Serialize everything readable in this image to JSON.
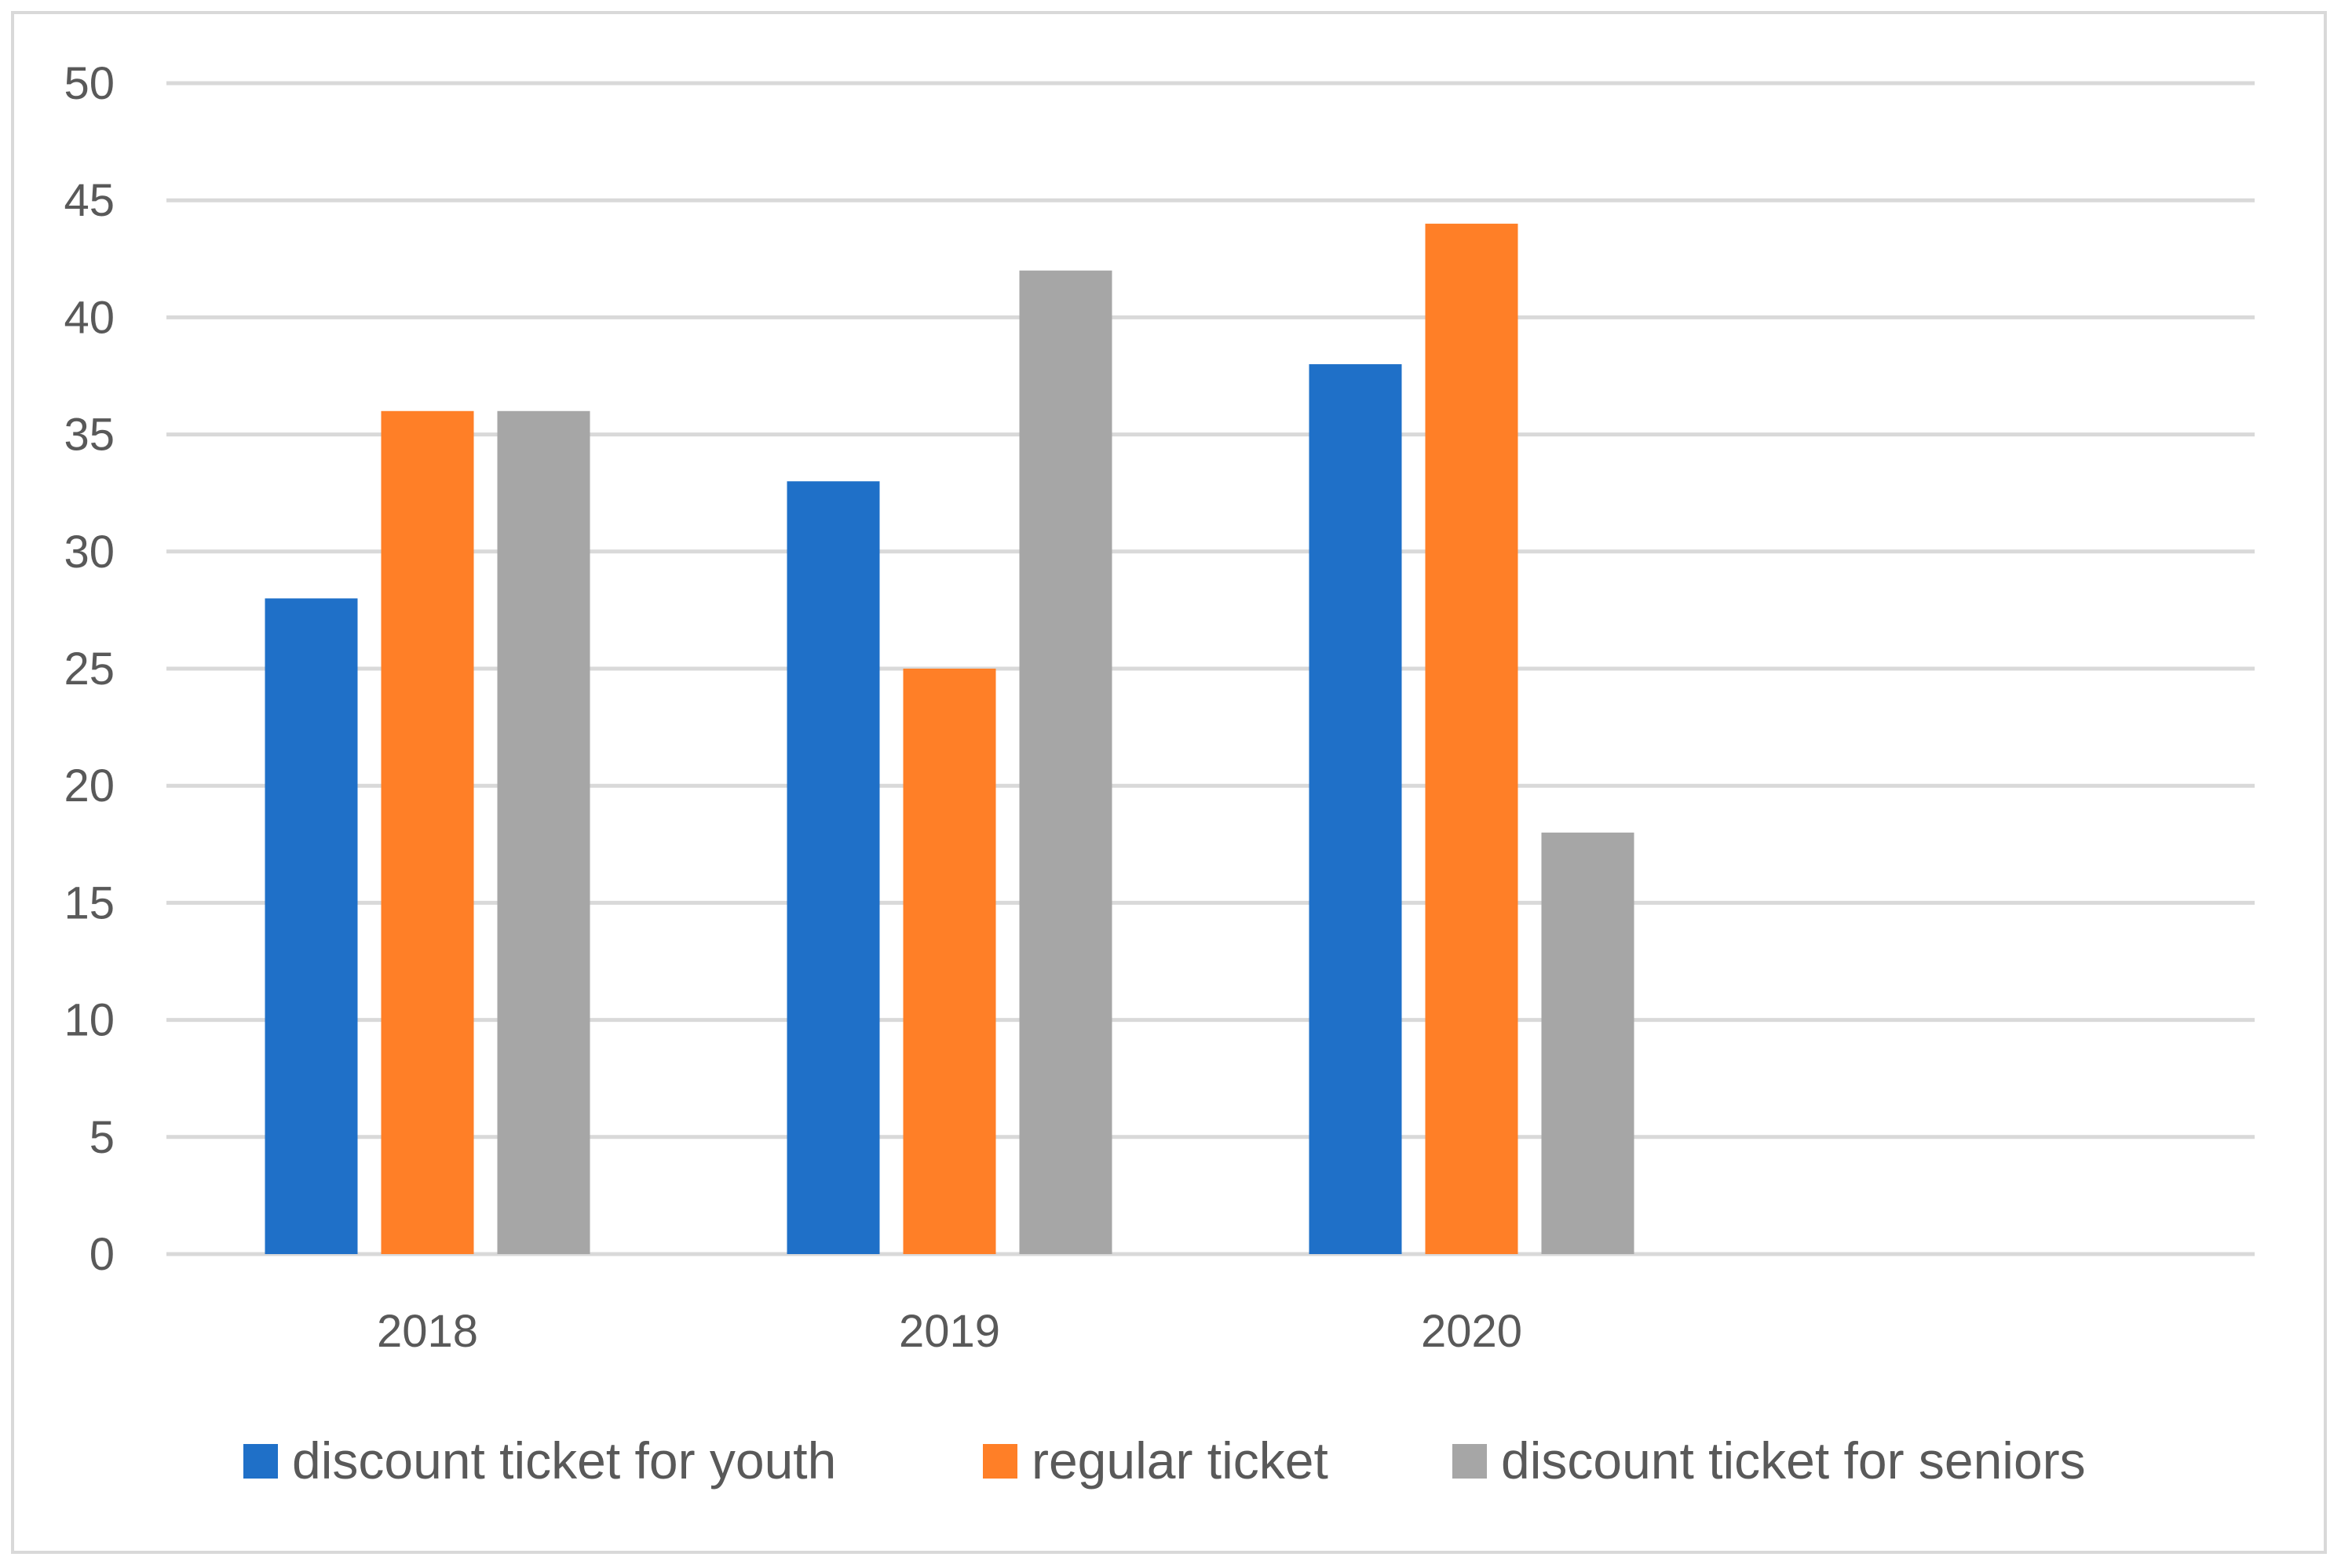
{
  "chart_data": {
    "type": "bar",
    "categories": [
      "2018",
      "2019",
      "2020",
      ""
    ],
    "series": [
      {
        "name": "discount ticket for youth",
        "values": [
          28,
          33,
          38,
          null
        ],
        "color": "#1F70C8"
      },
      {
        "name": "regular ticket",
        "values": [
          36,
          25,
          44,
          null
        ],
        "color": "#FF7F27"
      },
      {
        "name": "discount ticket for seniors",
        "values": [
          36,
          42,
          18,
          null
        ],
        "color": "#A6A6A6"
      }
    ],
    "ylim": [
      0,
      50
    ],
    "yticks": [
      0,
      5,
      10,
      15,
      20,
      25,
      30,
      35,
      40,
      45,
      50
    ],
    "grid": true,
    "legend_position": "bottom"
  }
}
